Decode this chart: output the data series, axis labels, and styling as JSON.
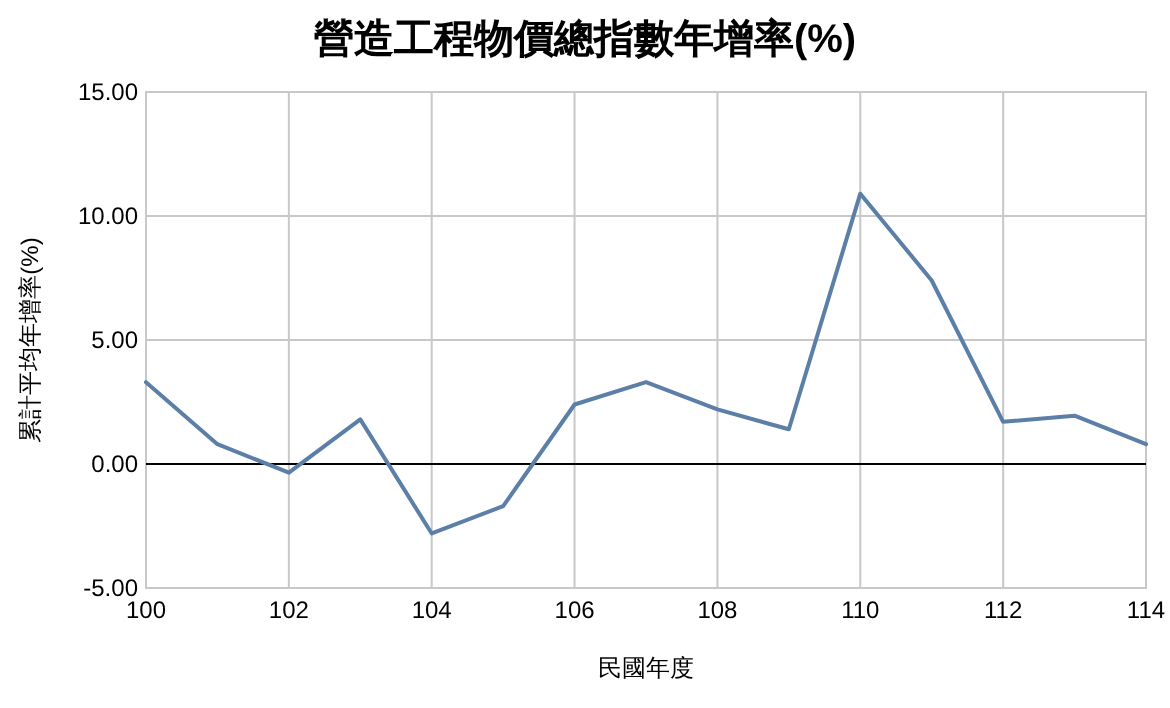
{
  "chart_data": {
    "type": "line",
    "title": "營造工程物價總指數年增率(%)",
    "xlabel": "民國年度",
    "ylabel": "累計平均年增率(%)",
    "x": [
      100,
      101,
      102,
      103,
      104,
      105,
      106,
      107,
      108,
      109,
      110,
      111,
      112,
      113,
      114
    ],
    "series": [
      {
        "color": "#5b7fa6",
        "values": [
          3.3,
          0.8,
          -0.35,
          1.8,
          -2.8,
          -1.7,
          2.4,
          3.3,
          2.2,
          1.4,
          10.9,
          7.4,
          1.7,
          1.95,
          0.8
        ]
      }
    ],
    "xlim": [
      100,
      114
    ],
    "xticks": [
      100,
      102,
      104,
      106,
      108,
      110,
      112,
      114
    ],
    "ylim": [
      -5,
      15
    ],
    "yticks": [
      {
        "value": -5,
        "label": "-5.00"
      },
      {
        "value": 0,
        "label": "0.00"
      },
      {
        "value": 5,
        "label": "5.00"
      },
      {
        "value": 10,
        "label": "10.00"
      },
      {
        "value": 15,
        "label": "15.00"
      }
    ],
    "ref_lines": [
      {
        "axis": "y",
        "value": 0,
        "color": "#000000"
      }
    ],
    "grid": true,
    "marker": "none",
    "line_style": "solid"
  }
}
